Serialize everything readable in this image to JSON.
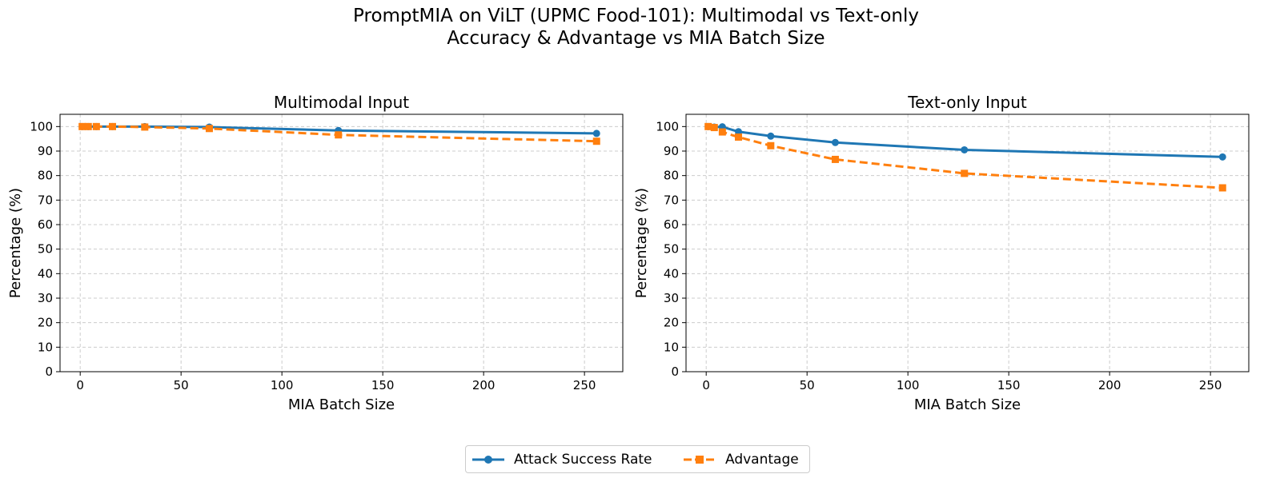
{
  "suptitle_lines": [
    "PromptMIA on ViLT (UPMC Food-101): Multimodal vs Text-only",
    "Accuracy & Advantage vs MIA Batch Size"
  ],
  "colors": {
    "success": "#1f77b4",
    "advantage": "#ff7f0e",
    "grid": "#cccccc"
  },
  "legend": [
    {
      "label": "Attack Success Rate",
      "marker": "circle",
      "style": "solid"
    },
    {
      "label": "Advantage",
      "marker": "square",
      "style": "dashed"
    }
  ],
  "chart_data": [
    {
      "type": "line",
      "title": "Multimodal Input",
      "xlabel": "MIA Batch Size",
      "ylabel": "Percentage (%)",
      "xlim": [
        -10,
        269
      ],
      "ylim": [
        0,
        105
      ],
      "xticks": [
        0,
        50,
        100,
        150,
        200,
        250
      ],
      "yticks": [
        0,
        10,
        20,
        30,
        40,
        50,
        60,
        70,
        80,
        90,
        100
      ],
      "grid": true,
      "x": [
        1,
        4,
        8,
        16,
        32,
        64,
        128,
        256
      ],
      "series": [
        {
          "name": "Attack Success Rate",
          "values": [
            100,
            100,
            100,
            100,
            100,
            99.8,
            98.4,
            97.2
          ]
        },
        {
          "name": "Advantage",
          "values": [
            100,
            100,
            100,
            100,
            99.8,
            99.2,
            96.6,
            94.0
          ]
        }
      ]
    },
    {
      "type": "line",
      "title": "Text-only Input",
      "xlabel": "MIA Batch Size",
      "ylabel": "Percentage (%)",
      "xlim": [
        -10,
        269
      ],
      "ylim": [
        0,
        105
      ],
      "xticks": [
        0,
        50,
        100,
        150,
        200,
        250
      ],
      "yticks": [
        0,
        10,
        20,
        30,
        40,
        50,
        60,
        70,
        80,
        90,
        100
      ],
      "grid": true,
      "x": [
        1,
        4,
        8,
        16,
        32,
        64,
        128,
        256
      ],
      "series": [
        {
          "name": "Attack Success Rate",
          "values": [
            100,
            99.8,
            99.9,
            97.9,
            96.1,
            93.5,
            90.5,
            87.6
          ]
        },
        {
          "name": "Advantage",
          "values": [
            100,
            99.6,
            97.8,
            95.7,
            92.2,
            86.6,
            80.9,
            75.0
          ]
        }
      ]
    }
  ]
}
